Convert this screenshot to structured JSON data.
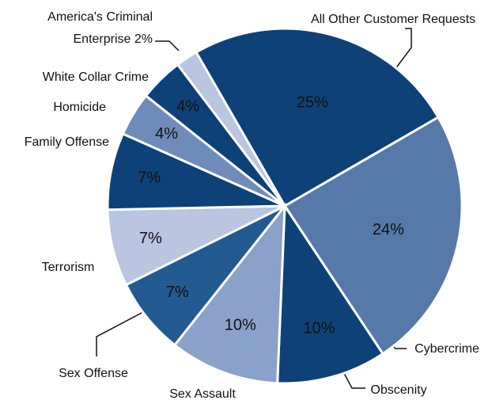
{
  "chart_data": {
    "type": "pie",
    "categories": [
      "All Other Customer Requests",
      "Cybercrime",
      "Obscenity",
      "Sex Assault",
      "Sex Offense",
      "Terrorism",
      "Family Offense",
      "Homicide",
      "White Collar Crime",
      "America's Criminal Enterprise"
    ],
    "values": [
      25,
      24,
      10,
      10,
      7,
      7,
      7,
      4,
      4,
      2
    ],
    "value_labels": [
      "25%",
      "24%",
      "10%",
      "10%",
      "7%",
      "7%",
      "7%",
      "4%",
      "4%",
      "2%"
    ],
    "colors": [
      "#0e4178",
      "#5679a9",
      "#0e4178",
      "#8aa1c9",
      "#235a92",
      "#b9c5e1",
      "#0e4178",
      "#6f8bb9",
      "#0e4178",
      "#b9c5e1"
    ]
  }
}
